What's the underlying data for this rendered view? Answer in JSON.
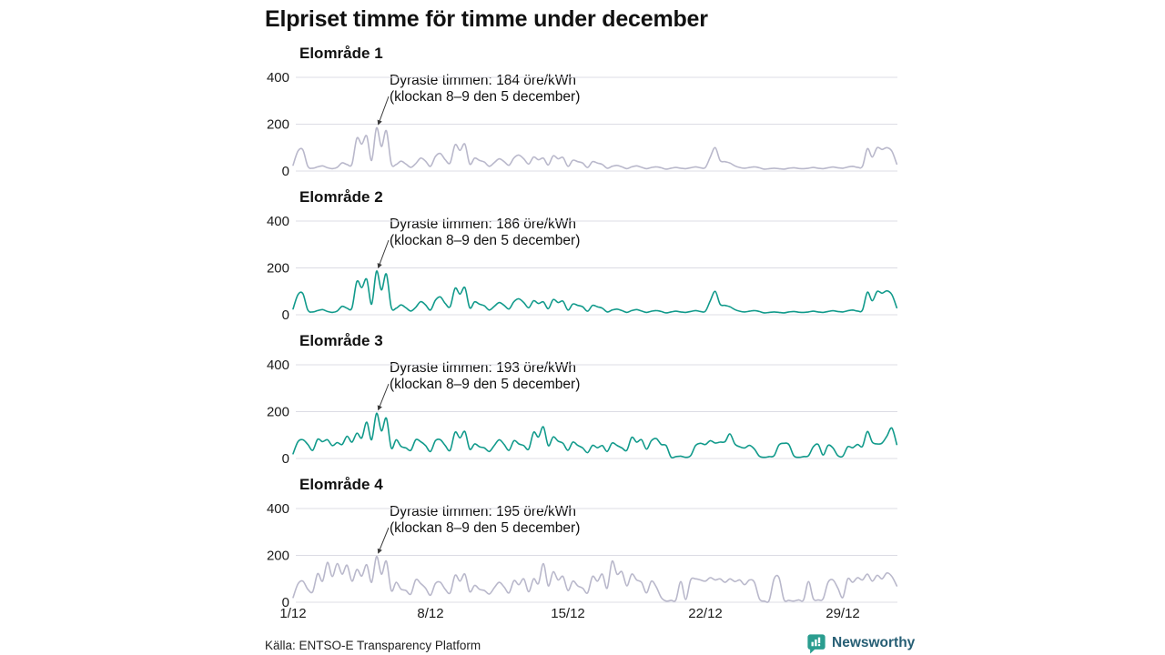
{
  "title": "Elpriset timme för timme under december",
  "footer": {
    "source": "Källa: ENTSO-E Transparency Platform",
    "brand": "Newsworthy"
  },
  "axis": {
    "x_ticks": [
      "1/12",
      "8/12",
      "15/12",
      "22/12",
      "29/12"
    ],
    "y_ticks": [
      400,
      200,
      0
    ],
    "ylim": [
      0,
      400
    ]
  },
  "colors": {
    "gray_series": "#b9b8cb",
    "teal_series": "#119a8b",
    "grid": "#dcdce4",
    "text": "#1b1b1b",
    "arrow": "#3a3a3a",
    "brand_icon": "#2a9d8f",
    "brand_text": "#265e74"
  },
  "chart_data": [
    {
      "type": "line",
      "title": "Elområde 1",
      "unit": "öre/kWh",
      "points_per_day": 4,
      "x_range": [
        "1/12",
        "31/12"
      ],
      "ylim": [
        0,
        430
      ],
      "y_ticks": [
        400,
        200,
        0
      ],
      "color": "#b9b8cb",
      "annotation": {
        "line1": "Dyraste timmen: 184 öre/kWh",
        "line2": "(klockan 8–9 den 5 december)",
        "peak_value": 184,
        "peak_time": "8–9 den 5 december"
      },
      "values": [
        25,
        85,
        90,
        20,
        12,
        18,
        22,
        14,
        10,
        16,
        35,
        28,
        30,
        140,
        115,
        150,
        45,
        184,
        105,
        172,
        32,
        28,
        42,
        30,
        16,
        32,
        55,
        42,
        20,
        62,
        75,
        48,
        35,
        112,
        88,
        115,
        30,
        55,
        45,
        38,
        20,
        36,
        52,
        40,
        25,
        56,
        68,
        52,
        30,
        60,
        48,
        55,
        26,
        65,
        52,
        58,
        20,
        46,
        40,
        34,
        15,
        40,
        34,
        28,
        12,
        20,
        24,
        18,
        10,
        18,
        22,
        16,
        10,
        15,
        18,
        14,
        8,
        12,
        15,
        12,
        10,
        14,
        18,
        14,
        15,
        60,
        100,
        45,
        40,
        34,
        22,
        15,
        12,
        15,
        18,
        14,
        8,
        10,
        12,
        10,
        8,
        12,
        14,
        11,
        10,
        12,
        15,
        12,
        10,
        14,
        17,
        14,
        12,
        17,
        20,
        16,
        20,
        95,
        60,
        100,
        92,
        100,
        85,
        30
      ]
    },
    {
      "type": "line",
      "title": "Elområde 2",
      "unit": "öre/kWh",
      "points_per_day": 4,
      "x_range": [
        "1/12",
        "31/12"
      ],
      "ylim": [
        0,
        430
      ],
      "y_ticks": [
        400,
        200,
        0
      ],
      "color": "#119a8b",
      "annotation": {
        "line1": "Dyraste timmen: 186 öre/kWh",
        "line2": "(klockan 8–9 den 5 december)",
        "peak_value": 186,
        "peak_time": "8–9 den 5 december"
      },
      "values": [
        25,
        86,
        90,
        20,
        12,
        18,
        22,
        14,
        10,
        16,
        36,
        28,
        30,
        142,
        116,
        152,
        45,
        186,
        106,
        174,
        32,
        28,
        42,
        30,
        16,
        32,
        56,
        42,
        20,
        62,
        76,
        48,
        35,
        113,
        88,
        116,
        30,
        55,
        45,
        38,
        20,
        36,
        52,
        40,
        25,
        56,
        68,
        52,
        30,
        60,
        48,
        55,
        26,
        65,
        52,
        58,
        20,
        46,
        40,
        34,
        15,
        40,
        34,
        28,
        12,
        20,
        24,
        18,
        10,
        18,
        22,
        16,
        10,
        15,
        18,
        14,
        8,
        12,
        15,
        12,
        10,
        14,
        18,
        14,
        15,
        60,
        100,
        45,
        40,
        34,
        22,
        15,
        12,
        15,
        18,
        14,
        8,
        10,
        12,
        10,
        8,
        12,
        14,
        11,
        10,
        12,
        15,
        12,
        10,
        14,
        17,
        14,
        12,
        17,
        20,
        16,
        20,
        96,
        60,
        100,
        92,
        102,
        86,
        30
      ]
    },
    {
      "type": "line",
      "title": "Elområde 3",
      "unit": "öre/kWh",
      "points_per_day": 4,
      "x_range": [
        "1/12",
        "31/12"
      ],
      "ylim": [
        0,
        430
      ],
      "y_ticks": [
        400,
        200,
        0
      ],
      "color": "#119a8b",
      "annotation": {
        "line1": "Dyraste timmen: 193 öre/kWh",
        "line2": "(klockan 8–9 den 5 december)",
        "peak_value": 193,
        "peak_time": "8–9 den 5 december"
      },
      "values": [
        20,
        72,
        80,
        60,
        35,
        82,
        72,
        80,
        55,
        68,
        60,
        95,
        70,
        108,
        88,
        155,
        80,
        193,
        118,
        172,
        45,
        80,
        52,
        45,
        35,
        80,
        72,
        55,
        30,
        76,
        80,
        55,
        35,
        112,
        88,
        115,
        40,
        62,
        50,
        45,
        30,
        56,
        80,
        60,
        35,
        76,
        62,
        55,
        40,
        112,
        92,
        135,
        55,
        92,
        74,
        65,
        35,
        70,
        56,
        45,
        25,
        56,
        46,
        55,
        30,
        66,
        56,
        45,
        35,
        90,
        70,
        80,
        40,
        76,
        85,
        60,
        55,
        6,
        8,
        10,
        5,
        12,
        55,
        65,
        60,
        76,
        66,
        70,
        72,
        105,
        62,
        50,
        45,
        56,
        40,
        10,
        5,
        8,
        12,
        58,
        65,
        60,
        12,
        5,
        8,
        12,
        50,
        60,
        15,
        56,
        45,
        12,
        10,
        50,
        46,
        60,
        52,
        115,
        70,
        62,
        66,
        96,
        130,
        60
      ]
    },
    {
      "type": "line",
      "title": "Elområde 4",
      "unit": "öre/kWh",
      "points_per_day": 4,
      "x_range": [
        "1/12",
        "31/12"
      ],
      "ylim": [
        0,
        430
      ],
      "y_ticks": [
        400,
        200,
        0
      ],
      "color": "#b9b8cb",
      "annotation": {
        "line1": "Dyraste timmen: 195 öre/kWh",
        "line2": "(klockan 8–9 den 5 december)",
        "peak_value": 195,
        "peak_time": "8–9 den 5 december"
      },
      "values": [
        20,
        78,
        90,
        55,
        45,
        122,
        90,
        170,
        110,
        165,
        120,
        158,
        90,
        140,
        112,
        160,
        85,
        195,
        120,
        175,
        50,
        85,
        56,
        50,
        35,
        96,
        80,
        60,
        30,
        80,
        85,
        55,
        40,
        115,
        90,
        120,
        45,
        72,
        55,
        50,
        35,
        62,
        85,
        65,
        40,
        92,
        75,
        100,
        45,
        100,
        80,
        165,
        70,
        130,
        95,
        110,
        50,
        90,
        70,
        60,
        40,
        110,
        90,
        120,
        60,
        175,
        120,
        130,
        70,
        120,
        95,
        85,
        40,
        90,
        65,
        20,
        5,
        8,
        10,
        88,
        12,
        95,
        100,
        95,
        90,
        105,
        95,
        100,
        85,
        100,
        88,
        95,
        75,
        95,
        85,
        15,
        5,
        8,
        100,
        105,
        12,
        8,
        5,
        10,
        10,
        88,
        15,
        10,
        15,
        85,
        95,
        60,
        20,
        100,
        85,
        105,
        95,
        120,
        90,
        115,
        100,
        125,
        110,
        70
      ]
    }
  ]
}
